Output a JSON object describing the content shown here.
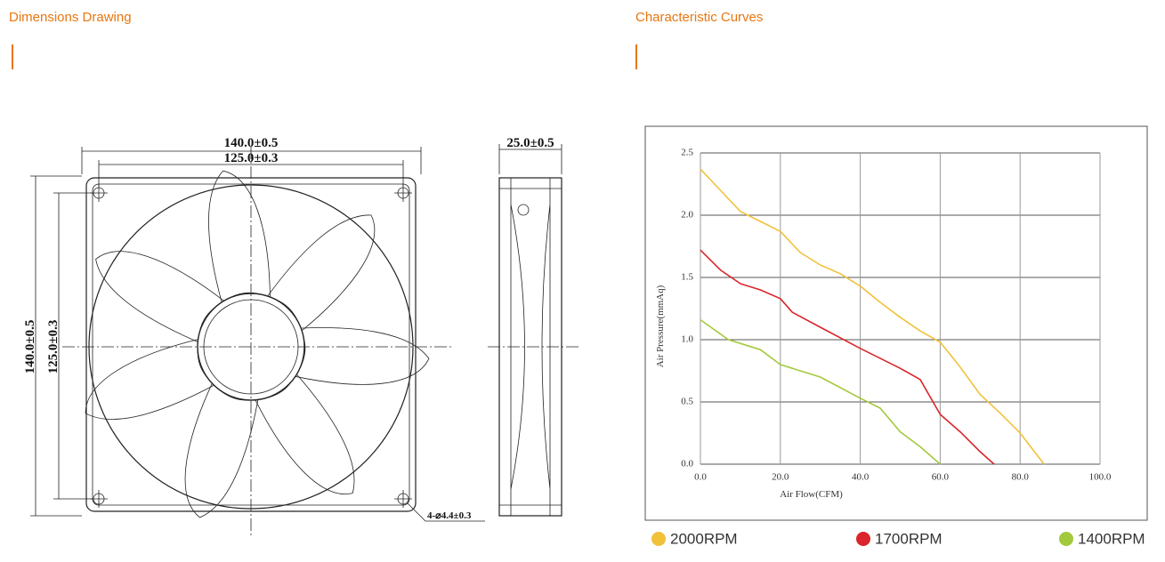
{
  "left_section": {
    "title": "Dimensions Drawing"
  },
  "right_section": {
    "title": "Characteristic Curves"
  },
  "drawing": {
    "width_outer": "140.0±0.5",
    "width_holes": "125.0±0.3",
    "depth": "25.0±0.5",
    "height_outer": "140.0±0.5",
    "height_holes": "125.0±0.3",
    "holes": "4-⌀4.4±0.3"
  },
  "chart_data": {
    "type": "line",
    "x_label": "Air Flow(CFM)",
    "y_label": "Air Pressure(mmAq)",
    "xlim": [
      0,
      100
    ],
    "ylim": [
      0,
      2.5
    ],
    "xticks": [
      {
        "value": 0,
        "label": "0.0"
      },
      {
        "value": 20,
        "label": "20.0"
      },
      {
        "value": 40,
        "label": "40.0"
      },
      {
        "value": 60,
        "label": "60.0"
      },
      {
        "value": 80,
        "label": "80.0"
      },
      {
        "value": 100,
        "label": "100.0"
      }
    ],
    "yticks": [
      {
        "value": 0,
        "label": "0.0"
      },
      {
        "value": 0.5,
        "label": "0.5"
      },
      {
        "value": 1,
        "label": "1.0"
      },
      {
        "value": 1.5,
        "label": "1.5"
      },
      {
        "value": 2,
        "label": "2.0"
      },
      {
        "value": 2.5,
        "label": "2.5"
      }
    ],
    "grid": true,
    "series": [
      {
        "name": "2000RPM",
        "color": "#f2c13a",
        "x": [
          0,
          5,
          10,
          15,
          20,
          25,
          30,
          35,
          40,
          45,
          50,
          55,
          60,
          65,
          70,
          75,
          80,
          86
        ],
        "values": [
          2.37,
          2.2,
          2.03,
          1.95,
          1.87,
          1.7,
          1.6,
          1.53,
          1.43,
          1.3,
          1.18,
          1.07,
          0.98,
          0.78,
          0.56,
          0.41,
          0.25,
          0
        ]
      },
      {
        "name": "1700RPM",
        "color": "#d9252b",
        "x": [
          0,
          5,
          10,
          15,
          20,
          23,
          30,
          40,
          50,
          55,
          60,
          65,
          70,
          73.5
        ],
        "values": [
          1.72,
          1.56,
          1.45,
          1.4,
          1.33,
          1.22,
          1.1,
          0.93,
          0.77,
          0.68,
          0.4,
          0.26,
          0.1,
          0
        ]
      },
      {
        "name": "1400RPM",
        "color": "#a3c93c",
        "x": [
          0,
          7,
          15,
          20,
          30,
          40,
          45,
          50,
          55,
          60
        ],
        "values": [
          1.16,
          1.0,
          0.92,
          0.8,
          0.7,
          0.53,
          0.45,
          0.26,
          0.14,
          0
        ]
      }
    ]
  }
}
